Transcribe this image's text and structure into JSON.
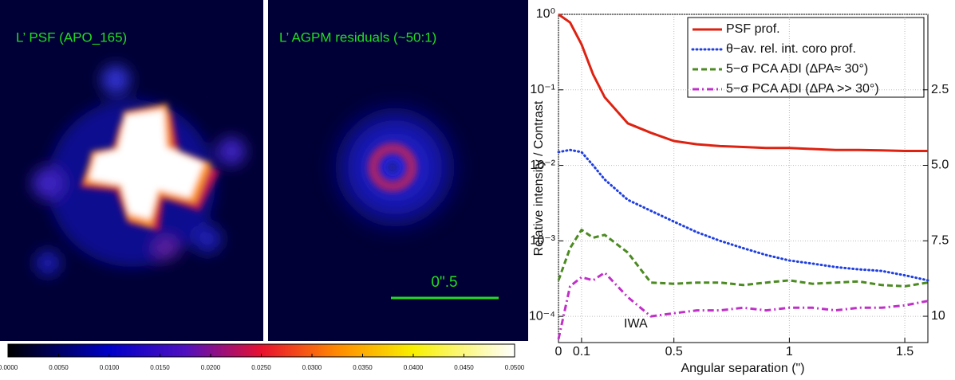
{
  "images": [
    {
      "title": "L’ PSF (APO_165)"
    },
    {
      "title": "L’ AGPM residuals (~50:1)",
      "scale_label": "0\".5"
    }
  ],
  "colorbar": {
    "lim": [
      0,
      0.05
    ],
    "ticks": [
      {
        "value": 0,
        "label": "0.0000"
      },
      {
        "value": 0.005,
        "label": "0.0050"
      },
      {
        "value": 0.01,
        "label": "0.0100"
      },
      {
        "value": 0.015,
        "label": "0.0150"
      },
      {
        "value": 0.02,
        "label": "0.0200"
      },
      {
        "value": 0.025,
        "label": "0.0250"
      },
      {
        "value": 0.03,
        "label": "0.0300"
      },
      {
        "value": 0.035,
        "label": "0.0350"
      },
      {
        "value": 0.04,
        "label": "0.0400"
      },
      {
        "value": 0.045,
        "label": "0.0450"
      },
      {
        "value": 0.05,
        "label": "0.0500"
      }
    ]
  },
  "chart_data": {
    "type": "line",
    "xlabel": "Angular separation (\")",
    "ylabel": "Relative intensity / Contrast",
    "annotation": "IWA",
    "log_y": true,
    "grid": true,
    "legend": "upper right",
    "x": [
      0,
      0.05,
      0.1,
      0.15,
      0.2,
      0.3,
      0.4,
      0.5,
      0.6,
      0.7,
      0.8,
      0.9,
      1.0,
      1.1,
      1.2,
      1.3,
      1.4,
      1.5,
      1.6
    ],
    "series": [
      {
        "name": "PSF prof.",
        "color": "#dd2211",
        "linestyle": "solid",
        "values": [
          1,
          0.78,
          0.4,
          0.16,
          0.08,
          0.036,
          0.027,
          0.021,
          0.019,
          0.018,
          0.0175,
          0.017,
          0.017,
          0.0165,
          0.016,
          0.016,
          0.0158,
          0.0155,
          0.0155
        ]
      },
      {
        "name": "θ−av. rel. int. coro prof.",
        "color": "#1f3fe0",
        "linestyle": "dotted",
        "values": [
          0.015,
          0.016,
          0.015,
          0.01,
          0.0065,
          0.0035,
          0.0025,
          0.0018,
          0.0013,
          0.001,
          0.0008,
          0.00065,
          0.00055,
          0.0005,
          0.00045,
          0.00042,
          0.0004,
          0.00035,
          0.0003
        ]
      },
      {
        "name": "5−σ PCA ADI (ΔPA≈ 30°)",
        "color": "#4c8a22",
        "linestyle": "dashed",
        "values": [
          0.0003,
          0.0008,
          0.0014,
          0.0011,
          0.0012,
          0.0007,
          0.00028,
          0.00027,
          0.00028,
          0.00028,
          0.00026,
          0.00028,
          0.0003,
          0.00027,
          0.00028,
          0.00029,
          0.00026,
          0.00025,
          0.00028
        ]
      },
      {
        "name": "5−σ PCA ADI (ΔPA >> 30°)",
        "color": "#c030c8",
        "linestyle": "dashdot",
        "values": [
          5e-05,
          0.00025,
          0.00033,
          0.0003,
          0.00038,
          0.00018,
          0.0001,
          0.00011,
          0.00012,
          0.00012,
          0.00013,
          0.00012,
          0.00013,
          0.00013,
          0.00012,
          0.00013,
          0.00013,
          0.00014,
          0.00016
        ]
      }
    ],
    "xlim": [
      0,
      1.6
    ],
    "xticks": [
      0,
      0.1,
      0.5,
      1,
      1.5
    ],
    "ylim": [
      4.5e-05,
      1
    ],
    "yticks": [
      {
        "value": 0.0001,
        "label": "10⁻⁴"
      },
      {
        "value": 0.001,
        "label": "10⁻³"
      },
      {
        "value": 0.01,
        "label": "10⁻²"
      },
      {
        "value": 0.1,
        "label": "10⁻¹"
      },
      {
        "value": 1,
        "label": "10⁰"
      }
    ],
    "y2lim": [
      0,
      10.87
    ],
    "y2_inverted": true,
    "y2ticks": [
      2.5,
      {
        "value": 5,
        "label": "5.0"
      },
      7.5,
      10
    ]
  }
}
